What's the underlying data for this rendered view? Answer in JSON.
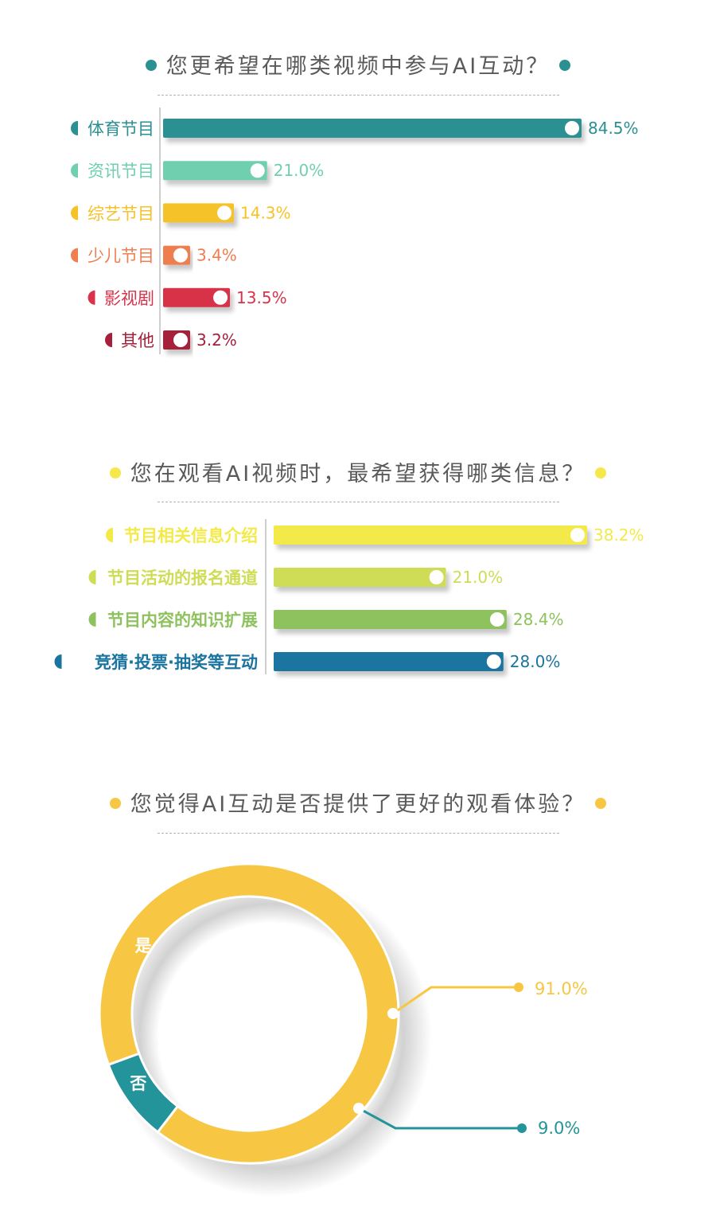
{
  "chart_data": [
    {
      "type": "bar",
      "orientation": "horizontal",
      "title": "您更希望在哪类视频中参与AI互动？",
      "categories": [
        "体育节目",
        "资讯节目",
        "综艺节目",
        "少儿节目",
        "影视剧",
        "其他"
      ],
      "values": [
        84.5,
        21.0,
        14.3,
        3.4,
        13.5,
        3.2
      ],
      "value_labels": [
        "84.5%",
        "21.0%",
        "14.3%",
        "3.4%",
        "13.5%",
        "3.2%"
      ],
      "colors": [
        "#2a9092",
        "#6fcfae",
        "#f6c229",
        "#ef7e50",
        "#d8334a",
        "#a6203b"
      ],
      "title_dot_color": "#2a9092"
    },
    {
      "type": "bar",
      "orientation": "horizontal",
      "title": "您在观看AI视频时，最希望获得哪类信息？",
      "categories": [
        "节目相关信息介绍",
        "节目活动的报名通道",
        "节目内容的知识扩展",
        "竞猜·投票·抽奖等互动"
      ],
      "values": [
        38.2,
        21.0,
        28.4,
        28.0
      ],
      "value_labels": [
        "38.2%",
        "21.0%",
        "28.4%",
        "28.0%"
      ],
      "colors": [
        "#f3ea4a",
        "#cedd55",
        "#8ec25e",
        "#1a74a0"
      ],
      "title_dot_color": "#f6e84a"
    },
    {
      "type": "pie",
      "style": "donut",
      "title": "您觉得AI互动是否提供了更好的观看体验？",
      "categories": [
        "是",
        "否"
      ],
      "values": [
        91.0,
        9.0
      ],
      "value_labels": [
        "91.0%",
        "9.0%"
      ],
      "colors": [
        "#f7c744",
        "#23949a"
      ],
      "title_dot_color": "#f7c744"
    }
  ]
}
